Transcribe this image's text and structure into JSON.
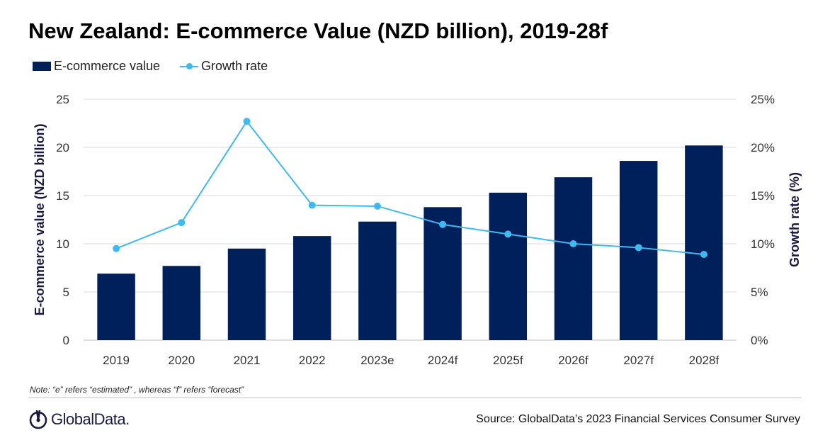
{
  "title": "New Zealand: E-commerce Value (NZD billion), 2019-28f",
  "legend": {
    "bar_label": "E-commerce value",
    "line_label": "Growth rate"
  },
  "note": "Note: “e” refers “estimated” , whereas “f” refers “forecast”",
  "source": "Source: GlobalData’s 2023 Financial Services Consumer Survey",
  "logo_text": "GlobalData.",
  "colors": {
    "bar": "#00205b",
    "line": "#3fbaf0",
    "grid": "#d9d9d9",
    "axis_title": "#1a1a40"
  },
  "chart_data": {
    "type": "bar",
    "categories": [
      "2019",
      "2020",
      "2021",
      "2022",
      "2023e",
      "2024f",
      "2025f",
      "2026f",
      "2027f",
      "2028f"
    ],
    "series": [
      {
        "name": "E-commerce value",
        "type": "bar",
        "axis": "left",
        "values": [
          6.9,
          7.7,
          9.5,
          10.8,
          12.3,
          13.8,
          15.3,
          16.9,
          18.6,
          20.2
        ]
      },
      {
        "name": "Growth rate",
        "type": "line",
        "axis": "right",
        "values": [
          9.5,
          12.2,
          22.7,
          14.0,
          13.9,
          12.0,
          11.0,
          10.0,
          9.6,
          8.9
        ]
      }
    ],
    "ylabel": "E-commerce value (NZD billion)",
    "y2label": "Growth rate (%)",
    "ylim": [
      0,
      25
    ],
    "y2lim": [
      0,
      25
    ],
    "yticks": [
      "0",
      "5",
      "10",
      "15",
      "20",
      "25"
    ],
    "y2ticks": [
      "0%",
      "5%",
      "10%",
      "15%",
      "20%",
      "25%"
    ],
    "grid": true,
    "legend_position": "top-left"
  }
}
